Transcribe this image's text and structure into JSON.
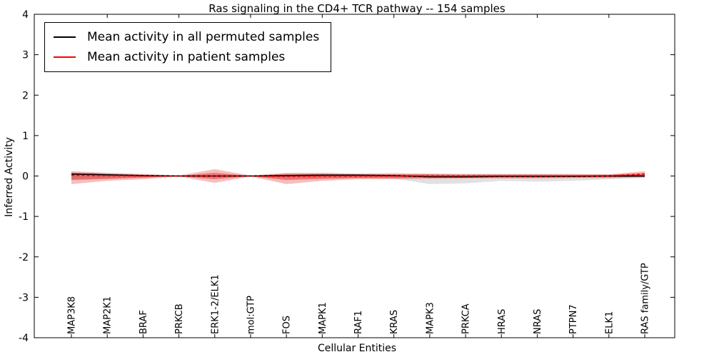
{
  "figure": {
    "title": "Ras signaling in the CD4+ TCR pathway -- 154 samples",
    "xlabel": "Cellular Entities",
    "ylabel": "Inferred Activity"
  },
  "chart_data": {
    "type": "line",
    "title": "Ras signaling in the CD4+ TCR pathway -- 154 samples",
    "xlabel": "Cellular Entities",
    "ylabel": "Inferred Activity",
    "ylim": [
      -4,
      4
    ],
    "yticks": [
      -4,
      -3,
      -2,
      -1,
      0,
      1,
      2,
      3,
      4
    ],
    "grid": false,
    "legend_position": "upper left",
    "categories": [
      "MAP3K8",
      "MAP2K1",
      "BRAF",
      "PRKCB",
      "ERK1-2/ELK1",
      "mol:GTP",
      "FOS",
      "MAPK1",
      "RAF1",
      "KRAS",
      "MAPK3",
      "PRKCA",
      "HRAS",
      "NRAS",
      "PTPN7",
      "ELK1",
      "RAS family/GTP"
    ],
    "legend": [
      {
        "label": "Mean activity in all permuted samples",
        "color": "#000000"
      },
      {
        "label": "Mean activity in patient samples",
        "color": "#ff0000"
      }
    ],
    "series": [
      {
        "name": "Mean activity in all permuted samples",
        "color": "#000000",
        "style": "solid",
        "values": [
          0.05,
          0.03,
          0.01,
          0.0,
          0.0,
          0.0,
          0.01,
          0.02,
          0.02,
          0.01,
          -0.02,
          -0.02,
          -0.01,
          -0.01,
          -0.01,
          0.0,
          0.0
        ]
      },
      {
        "name": "Mean activity in patient samples",
        "color": "#e60000",
        "style": "dashed",
        "values": [
          0.02,
          0.01,
          0.0,
          0.0,
          0.0,
          0.0,
          -0.01,
          0.0,
          0.0,
          0.0,
          0.0,
          0.0,
          0.0,
          0.0,
          0.0,
          0.0,
          0.05
        ]
      }
    ],
    "bands": [
      {
        "name": "permuted-samples-range",
        "color": "#9a9a9a",
        "opacity": 0.3,
        "upper": [
          0.1,
          0.06,
          0.03,
          0.01,
          0.02,
          0.01,
          0.04,
          0.05,
          0.05,
          0.04,
          0.04,
          0.04,
          0.04,
          0.04,
          0.03,
          0.03,
          0.04
        ],
        "lower": [
          -0.08,
          -0.06,
          -0.04,
          -0.01,
          -0.03,
          -0.01,
          -0.06,
          -0.05,
          -0.05,
          -0.06,
          -0.2,
          -0.18,
          -0.12,
          -0.14,
          -0.12,
          -0.08,
          -0.05
        ]
      },
      {
        "name": "patient-samples-outer-range",
        "color": "#e84545",
        "opacity": 0.35,
        "upper": [
          0.12,
          0.08,
          0.05,
          0.01,
          0.17,
          0.01,
          0.08,
          0.08,
          0.06,
          0.07,
          0.06,
          0.05,
          0.05,
          0.05,
          0.05,
          0.04,
          0.12
        ],
        "lower": [
          -0.2,
          -0.12,
          -0.08,
          -0.01,
          -0.17,
          -0.01,
          -0.2,
          -0.12,
          -0.08,
          -0.08,
          -0.07,
          -0.06,
          -0.06,
          -0.06,
          -0.05,
          -0.05,
          -0.03
        ]
      },
      {
        "name": "patient-samples-inner-range",
        "color": "#dd2222",
        "opacity": 0.45,
        "upper": [
          0.07,
          0.05,
          0.03,
          0.005,
          0.08,
          0.005,
          0.05,
          0.05,
          0.04,
          0.04,
          0.04,
          0.03,
          0.03,
          0.03,
          0.03,
          0.03,
          0.07
        ],
        "lower": [
          -0.1,
          -0.07,
          -0.04,
          -0.005,
          -0.08,
          -0.005,
          -0.1,
          -0.07,
          -0.05,
          -0.05,
          -0.04,
          -0.04,
          -0.04,
          -0.04,
          -0.03,
          -0.03,
          -0.02
        ]
      }
    ]
  }
}
